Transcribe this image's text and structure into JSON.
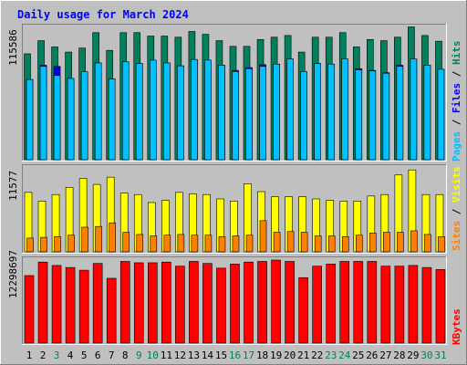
{
  "title": "Daily usage for March 2024",
  "colors": {
    "background": "#c0c0c0",
    "title": "#0000ff",
    "hits": "#00805c",
    "files": "#0000ff",
    "pages": "#00c0ff",
    "visits": "#ffff00",
    "sites": "#ff8000",
    "kbytes": "#ff0000",
    "weekend_day": "#00805c",
    "weekday": "#000000"
  },
  "chart_data": [
    {
      "type": "bar",
      "panel": "hits-files-pages",
      "ymax_label": "115586",
      "ylim": [
        0,
        115586
      ],
      "categories": [
        "1",
        "2",
        "3",
        "4",
        "5",
        "6",
        "7",
        "8",
        "9",
        "10",
        "11",
        "12",
        "13",
        "14",
        "15",
        "16",
        "17",
        "18",
        "19",
        "20",
        "21",
        "22",
        "23",
        "24",
        "25",
        "26",
        "27",
        "28",
        "29",
        "30",
        "31"
      ],
      "legend": [
        {
          "text": "Hits",
          "color": "#00805c"
        },
        {
          "text": "Files",
          "color": "#0000ff"
        },
        {
          "text": "Pages",
          "color": "#00c0ff"
        }
      ],
      "series": [
        {
          "name": "Hits",
          "values": [
            92500,
            104000,
            98500,
            94000,
            97500,
            111000,
            95500,
            111000,
            111000,
            108000,
            108000,
            107000,
            112000,
            109500,
            104000,
            99000,
            99000,
            105000,
            107000,
            108500,
            94000,
            107000,
            107000,
            111000,
            98500,
            105000,
            104000,
            107000,
            116000,
            108500,
            103500
          ]
        },
        {
          "name": "Files",
          "values": [
            70000,
            82500,
            81500,
            71000,
            74000,
            84500,
            70500,
            85500,
            84000,
            76000,
            84500,
            82000,
            87500,
            85000,
            82500,
            78000,
            80500,
            83000,
            83500,
            84500,
            73500,
            84000,
            83500,
            85500,
            79500,
            78000,
            76000,
            82500,
            87000,
            82500,
            79000
          ]
        },
        {
          "name": "Pages",
          "values": [
            70000,
            81500,
            73500,
            71000,
            77000,
            84500,
            70500,
            85500,
            84000,
            87000,
            84500,
            82000,
            87500,
            87000,
            82500,
            77000,
            79500,
            81500,
            83500,
            88000,
            77000,
            84000,
            83500,
            88000,
            78500,
            77500,
            75500,
            81500,
            88000,
            82500,
            79000
          ]
        }
      ]
    },
    {
      "type": "bar",
      "panel": "visits-sites",
      "ymax_label": "11577",
      "ylim": [
        0,
        11577
      ],
      "categories": [
        "1",
        "2",
        "3",
        "4",
        "5",
        "6",
        "7",
        "8",
        "9",
        "10",
        "11",
        "12",
        "13",
        "14",
        "15",
        "16",
        "17",
        "18",
        "19",
        "20",
        "21",
        "22",
        "23",
        "24",
        "25",
        "26",
        "27",
        "28",
        "29",
        "30",
        "31"
      ],
      "legend": [
        {
          "text": "Visits",
          "color": "#ffff00"
        },
        {
          "text": "Sites",
          "color": "#ff8000"
        }
      ],
      "series": [
        {
          "name": "Visits",
          "values": [
            8200,
            7000,
            7900,
            8900,
            10100,
            9300,
            10300,
            8100,
            7900,
            6800,
            7100,
            8200,
            8000,
            7900,
            7300,
            7000,
            9400,
            8300,
            7600,
            7600,
            7600,
            7300,
            7100,
            7000,
            7000,
            7700,
            7900,
            10600,
            11300,
            7900,
            7900
          ]
        },
        {
          "name": "Sites",
          "values": [
            1900,
            2000,
            2100,
            2300,
            3400,
            3500,
            4000,
            2700,
            2400,
            2200,
            2300,
            2400,
            2300,
            2300,
            2100,
            2200,
            2300,
            4300,
            2700,
            2800,
            2700,
            2200,
            2200,
            2100,
            2300,
            2600,
            2700,
            2700,
            2900,
            2400,
            2100
          ]
        }
      ]
    },
    {
      "type": "bar",
      "panel": "kbytes",
      "ymax_label": "12298697",
      "ylim": [
        0,
        12298697
      ],
      "categories": [
        "1",
        "2",
        "3",
        "4",
        "5",
        "6",
        "7",
        "8",
        "9",
        "10",
        "11",
        "12",
        "13",
        "14",
        "15",
        "16",
        "17",
        "18",
        "19",
        "20",
        "21",
        "22",
        "23",
        "24",
        "25",
        "26",
        "27",
        "28",
        "29",
        "30",
        "31"
      ],
      "legend": [
        {
          "text": "KBytes",
          "color": "#ff0000"
        }
      ],
      "series": [
        {
          "name": "KBytes",
          "values": [
            10000000,
            12000000,
            11500000,
            11200000,
            10800000,
            11800000,
            9600000,
            12100000,
            11900000,
            11900000,
            12000000,
            11400000,
            12100000,
            11800000,
            11100000,
            11700000,
            12000000,
            12100000,
            12300000,
            12100000,
            9700000,
            11400000,
            11700000,
            12100000,
            12100000,
            12100000,
            11400000,
            11400000,
            11500000,
            11200000,
            10900000
          ]
        }
      ]
    }
  ],
  "day_labels": [
    {
      "text": "1",
      "weekend": false
    },
    {
      "text": "2",
      "weekend": false
    },
    {
      "text": "3",
      "weekend": true
    },
    {
      "text": "4",
      "weekend": false
    },
    {
      "text": "5",
      "weekend": false
    },
    {
      "text": "6",
      "weekend": false
    },
    {
      "text": "7",
      "weekend": false
    },
    {
      "text": "8",
      "weekend": false
    },
    {
      "text": "9",
      "weekend": true
    },
    {
      "text": "10",
      "weekend": true
    },
    {
      "text": "11",
      "weekend": false
    },
    {
      "text": "12",
      "weekend": false
    },
    {
      "text": "13",
      "weekend": false
    },
    {
      "text": "14",
      "weekend": false
    },
    {
      "text": "15",
      "weekend": false
    },
    {
      "text": "16",
      "weekend": true
    },
    {
      "text": "17",
      "weekend": true
    },
    {
      "text": "18",
      "weekend": false
    },
    {
      "text": "19",
      "weekend": false
    },
    {
      "text": "20",
      "weekend": false
    },
    {
      "text": "21",
      "weekend": false
    },
    {
      "text": "22",
      "weekend": false
    },
    {
      "text": "23",
      "weekend": true
    },
    {
      "text": "24",
      "weekend": true
    },
    {
      "text": "25",
      "weekend": false
    },
    {
      "text": "26",
      "weekend": false
    },
    {
      "text": "27",
      "weekend": false
    },
    {
      "text": "28",
      "weekend": false
    },
    {
      "text": "29",
      "weekend": false
    },
    {
      "text": "30",
      "weekend": true
    },
    {
      "text": "31",
      "weekend": true
    }
  ]
}
